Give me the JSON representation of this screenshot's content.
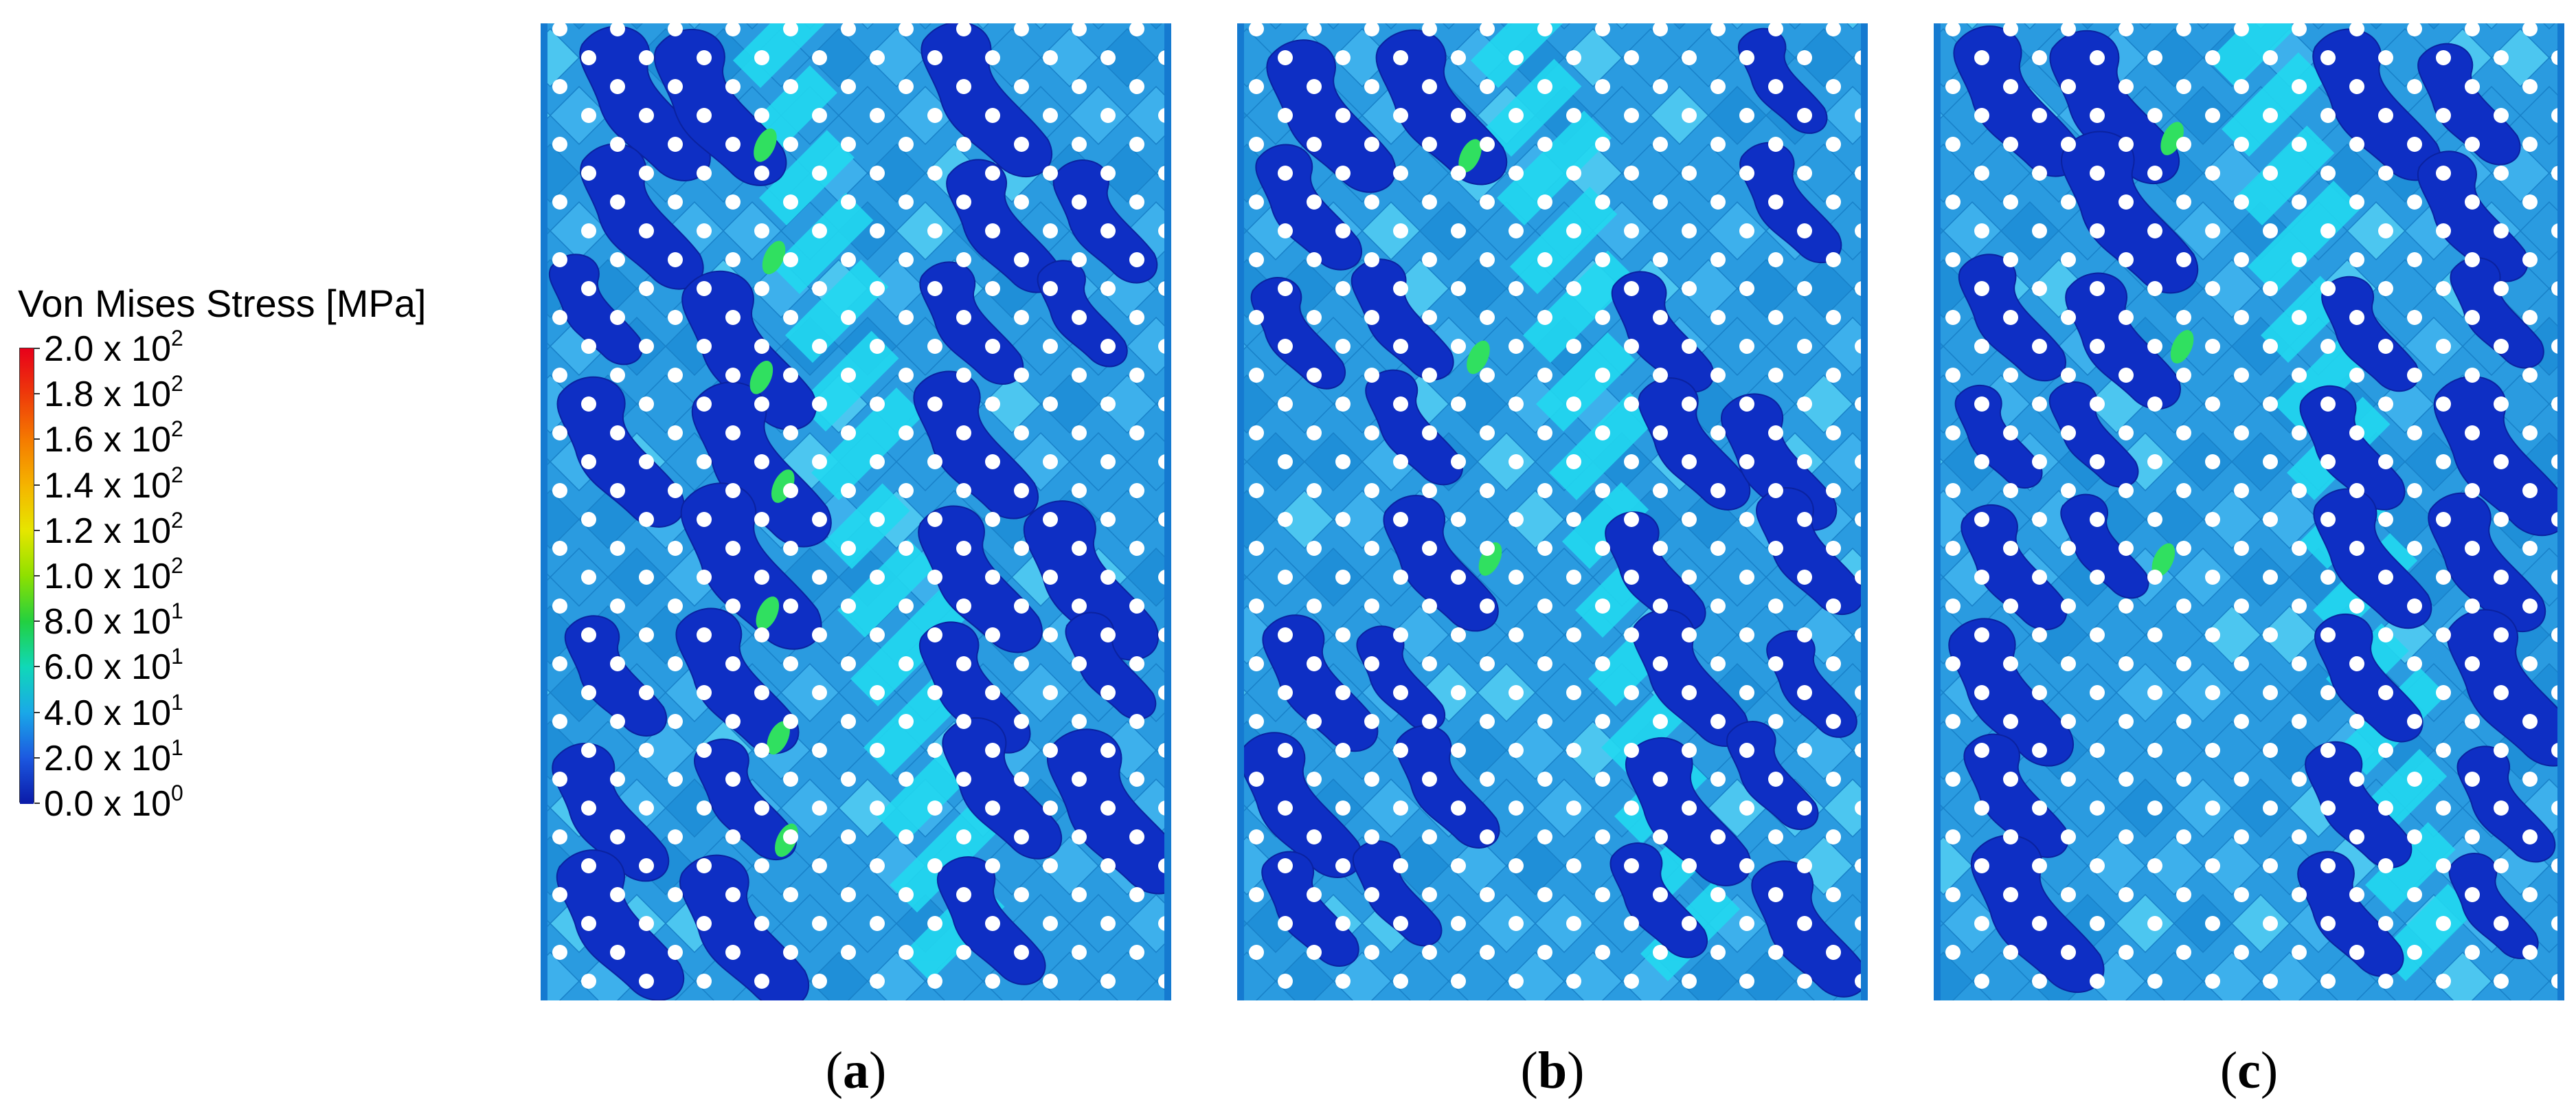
{
  "legend": {
    "title": "Von Mises Stress [MPa]",
    "ticks": [
      {
        "mantissa": "2.0 x 10",
        "exp": "2",
        "color": "#e8001a"
      },
      {
        "mantissa": "1.8 x 10",
        "exp": "2",
        "color": "#ee3a0a"
      },
      {
        "mantissa": "1.6 x 10",
        "exp": "2",
        "color": "#f57a00"
      },
      {
        "mantissa": "1.4 x 10",
        "exp": "2",
        "color": "#f5b400"
      },
      {
        "mantissa": "1.2 x 10",
        "exp": "2",
        "color": "#e6e600"
      },
      {
        "mantissa": "1.0 x 10",
        "exp": "2",
        "color": "#8ee000"
      },
      {
        "mantissa": "8.0 x 10",
        "exp": "1",
        "color": "#22d040"
      },
      {
        "mantissa": "6.0 x 10",
        "exp": "1",
        "color": "#10d8b8"
      },
      {
        "mantissa": "4.0 x 10",
        "exp": "1",
        "color": "#1aa8e8"
      },
      {
        "mantissa": "2.0 x 10",
        "exp": "1",
        "color": "#1c58e0"
      },
      {
        "mantissa": "0.0 x 10",
        "exp": "0",
        "color": "#0a1aa8"
      }
    ]
  },
  "panels": [
    {
      "label": "a",
      "paren_open": "(",
      "paren_close": ")"
    },
    {
      "label": "b",
      "paren_open": "(",
      "paren_close": ")"
    },
    {
      "label": "c",
      "paren_open": "(",
      "paren_close": ")"
    }
  ],
  "colors": {
    "base": "#2a9be0",
    "dark": "#0e2fc4",
    "light": "#22d8f0",
    "green": "#30e060",
    "hole": "#ffffff"
  }
}
